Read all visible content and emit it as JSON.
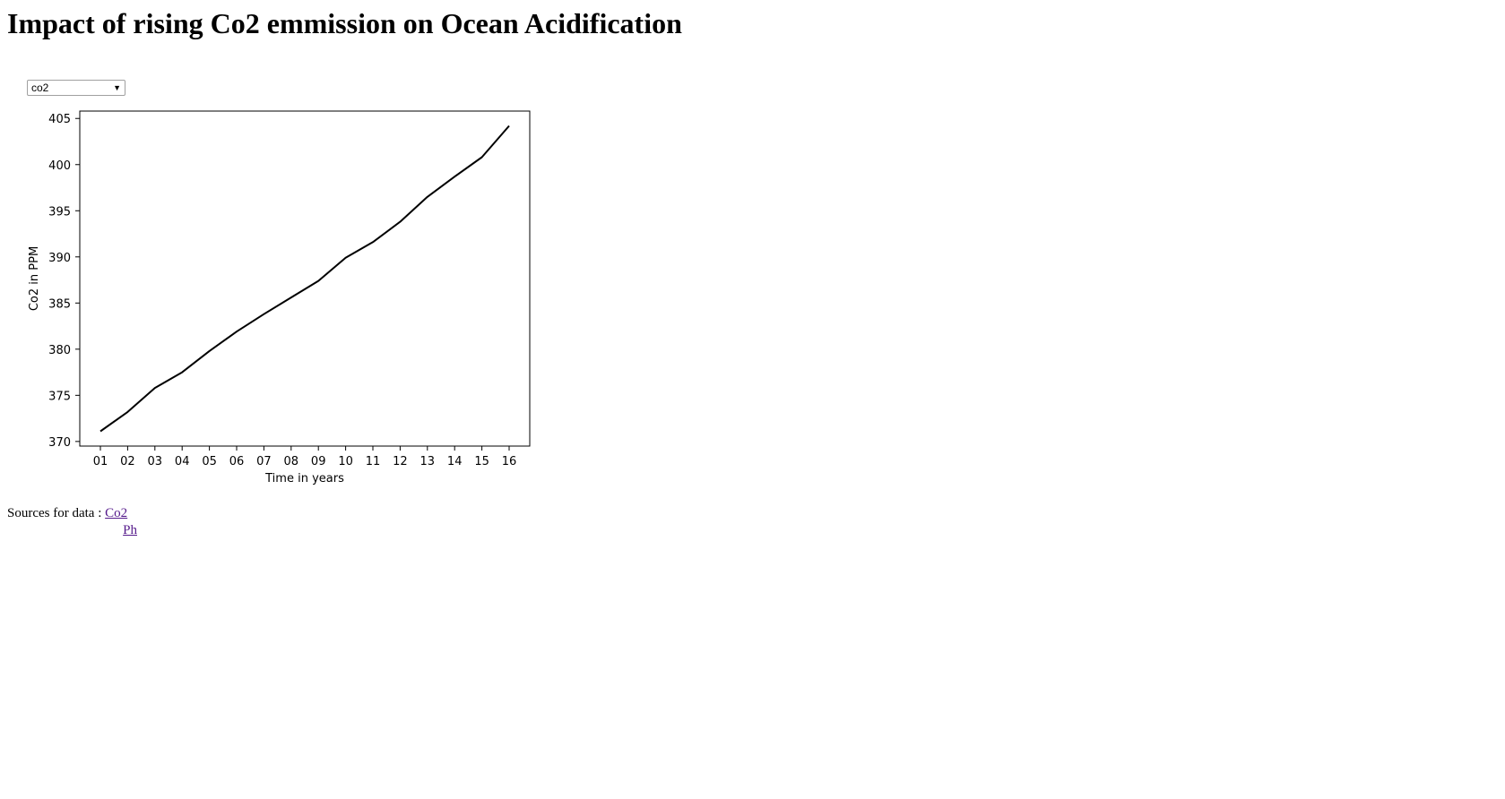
{
  "page": {
    "title": "Impact of rising Co2 emmission on Ocean Acidification"
  },
  "selector": {
    "selected": "co2",
    "arrow_icon": "chevron-down-icon"
  },
  "sources": {
    "label": "Sources for data : ",
    "links": [
      {
        "label": "Co2"
      },
      {
        "label": "Ph"
      }
    ]
  },
  "chart_data": {
    "type": "line",
    "xlabel": "Time in years",
    "ylabel": "Co2 in PPM",
    "categories": [
      "01",
      "02",
      "03",
      "04",
      "05",
      "06",
      "07",
      "08",
      "09",
      "10",
      "11",
      "12",
      "13",
      "14",
      "15",
      "16"
    ],
    "series": [
      {
        "values": [
          371.1,
          373.2,
          375.8,
          377.5,
          379.8,
          381.9,
          383.8,
          385.6,
          387.4,
          389.9,
          391.6,
          393.8,
          396.5,
          398.7,
          400.8,
          404.2
        ]
      }
    ],
    "ylim": [
      369.5,
      405.8
    ],
    "yticks": [
      370,
      375,
      380,
      385,
      390,
      395,
      400,
      405
    ],
    "line_color": "#000000",
    "grid": false
  }
}
